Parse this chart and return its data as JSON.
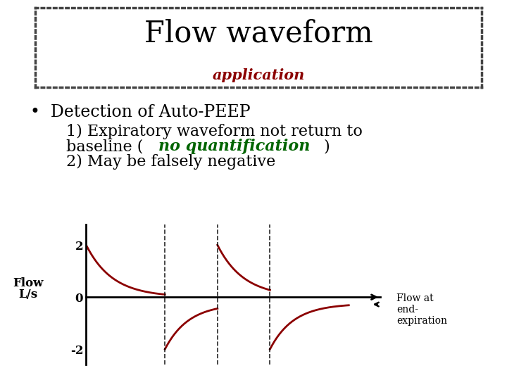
{
  "title": "Flow waveform",
  "subtitle": "application",
  "subtitle_color": "#8B0000",
  "bullet_text": "Detection of Auto-PEEP",
  "line1": "1) Expiratory waveform not return to",
  "line2_pre": "baseline (",
  "line2_italic": "no quantification",
  "line2_end": ")",
  "line3": "2) May be falsely negative",
  "ylabel_line1": "Flow",
  "ylabel_line2": "L/s",
  "yticks": [
    -2,
    0,
    2
  ],
  "annotation": "Flow at\nend-\nexpiration",
  "bg_color": "#ffffff",
  "waveform_color": "#8B0000",
  "border_color": "#444444",
  "title_fontsize": 30,
  "subtitle_fontsize": 15,
  "bullet_fontsize": 17,
  "text_fontsize": 16,
  "plot_xlim": [
    0,
    5.6
  ],
  "plot_ylim": [
    -2.6,
    2.8
  ]
}
